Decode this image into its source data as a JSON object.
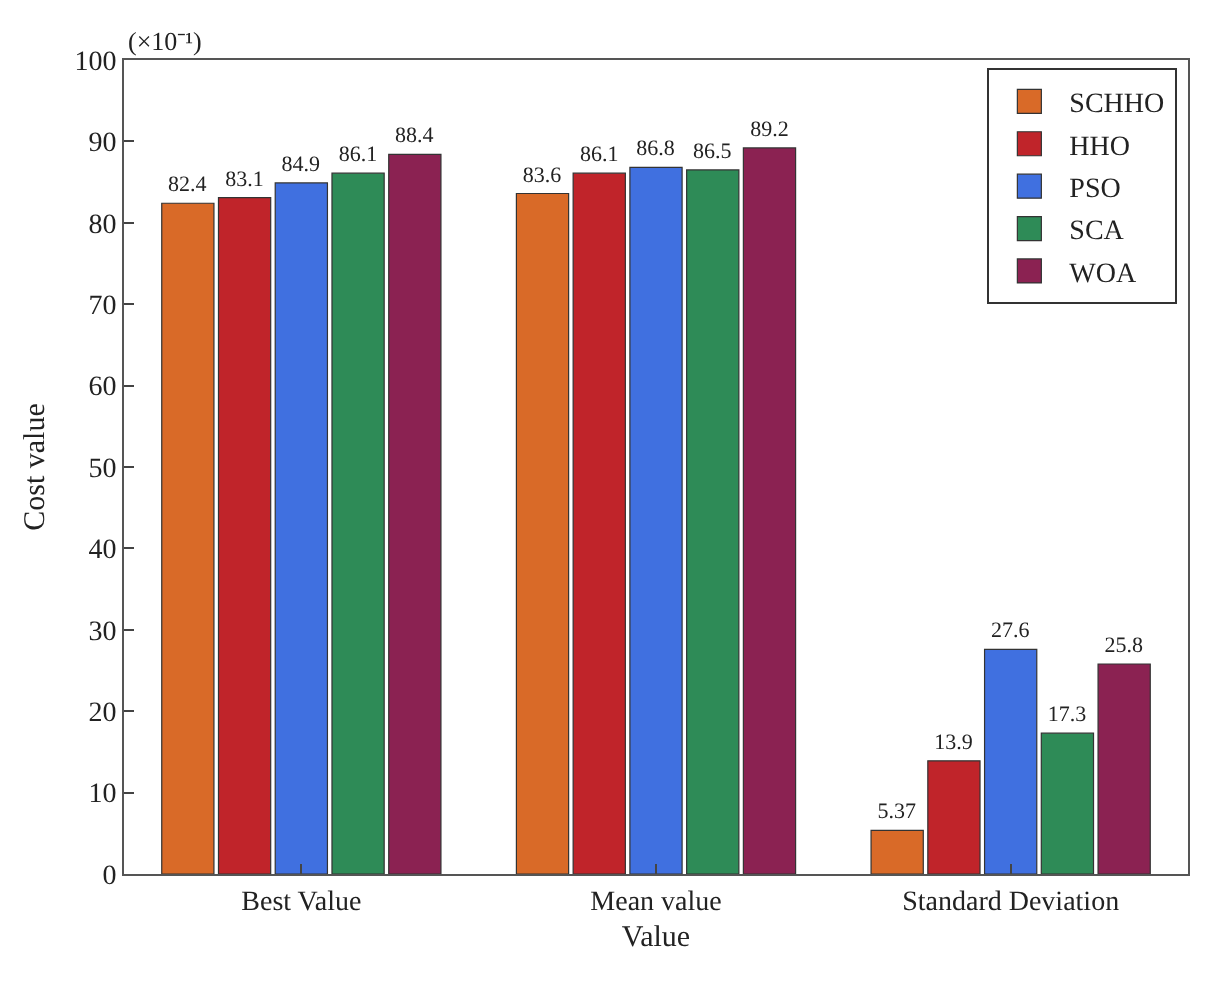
{
  "chart_data": {
    "type": "bar",
    "xlabel": "Value",
    "ylabel": "Cost value",
    "annotations": [
      "(×10⁻¹)"
    ],
    "categories": [
      "Best Value",
      "Mean value",
      "Standard Deviation"
    ],
    "series": [
      {
        "name": "SCHHO",
        "color": "#d96a28",
        "values": [
          82.4,
          83.6,
          5.37
        ]
      },
      {
        "name": "HHO",
        "color": "#c0242a",
        "values": [
          83.1,
          86.1,
          13.9
        ]
      },
      {
        "name": "PSO",
        "color": "#4070e0",
        "values": [
          84.9,
          86.8,
          27.6
        ]
      },
      {
        "name": "SCA",
        "color": "#2e8b57",
        "values": [
          86.1,
          86.5,
          17.3
        ]
      },
      {
        "name": "WOA",
        "color": "#8b2252",
        "values": [
          88.4,
          89.2,
          25.8
        ]
      }
    ],
    "ylim": [
      0,
      100
    ],
    "yticks": [
      0,
      10,
      20,
      30,
      40,
      50,
      60,
      70,
      80,
      90,
      100
    ],
    "data_labels": true,
    "legend": "top right",
    "grid": false
  }
}
